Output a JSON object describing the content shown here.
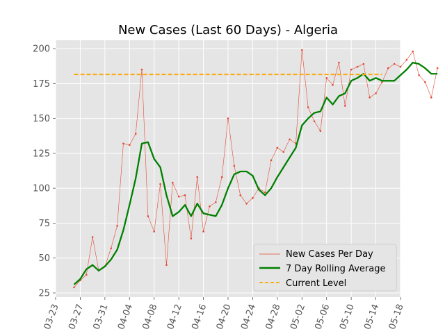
{
  "chart_data": {
    "type": "line",
    "title": "New Cases (Last 60 Days) - Algeria",
    "xlabel": "",
    "ylabel": "",
    "ylim": [
      22,
      206
    ],
    "xlim": [
      "03-23",
      "05-18"
    ],
    "grid": true,
    "legend_position": "bottom-right",
    "x_ticks": [
      "03-23",
      "03-27",
      "03-31",
      "04-04",
      "04-08",
      "04-12",
      "04-16",
      "04-20",
      "04-24",
      "04-28",
      "05-02",
      "05-06",
      "05-10",
      "05-14",
      "05-18"
    ],
    "y_ticks": [
      25,
      50,
      75,
      100,
      125,
      150,
      175,
      200
    ],
    "series": [
      {
        "name": "New Cases Per Day",
        "color": "#e24a33",
        "start_date": "03-26",
        "values": [
          29,
          34,
          38,
          65,
          41,
          44,
          57,
          73,
          132,
          131,
          139,
          185,
          80,
          69,
          103,
          45,
          104,
          94,
          95,
          64,
          108,
          69,
          87,
          90,
          108,
          150,
          116,
          95,
          89,
          93,
          100,
          97,
          120,
          129,
          126,
          135,
          132,
          199,
          158,
          148,
          141,
          179,
          174,
          190,
          159,
          185,
          187,
          189,
          165,
          168,
          176,
          186,
          189,
          187,
          192,
          198,
          181,
          176,
          165,
          186
        ]
      },
      {
        "name": "7 Day Rolling Average",
        "color": "#008000",
        "start_date": "03-26",
        "values": [
          31,
          35,
          42,
          45,
          41,
          44,
          49,
          56,
          70,
          88,
          107,
          132,
          133,
          121,
          115,
          95,
          80,
          83,
          88,
          80,
          89,
          82,
          81,
          80,
          88,
          100,
          110,
          112,
          112,
          109,
          99,
          95,
          100,
          108,
          115,
          122,
          129,
          145,
          150,
          154,
          155,
          165,
          160,
          166,
          168,
          177,
          179,
          182,
          177,
          179,
          177,
          177,
          177,
          181,
          185,
          190,
          189,
          186,
          182,
          182
        ]
      },
      {
        "name": "Current Level",
        "color": "#ffa500",
        "start_date": "03-26",
        "end_date": "05-15",
        "constant": 181.5
      }
    ]
  }
}
